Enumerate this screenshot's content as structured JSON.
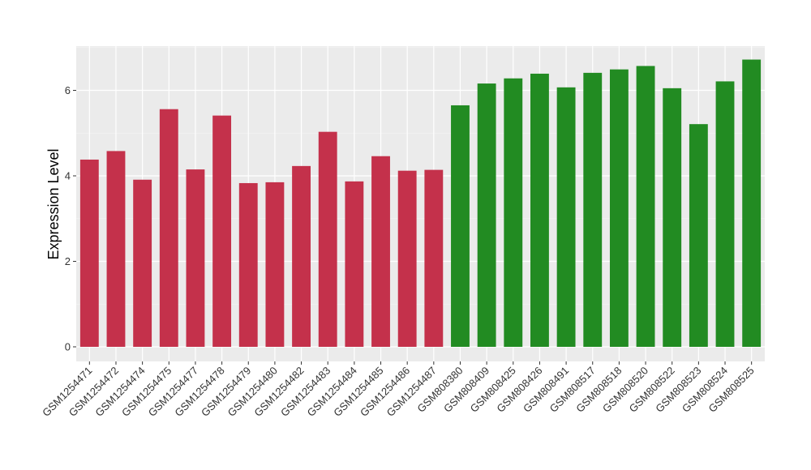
{
  "chart_data": {
    "type": "bar",
    "ylabel": "Expression Level",
    "xlabel": "",
    "ylim": [
      0,
      7.1
    ],
    "yticks": [
      0,
      2,
      4,
      6
    ],
    "grid": true,
    "background": "#ebebeb",
    "group_colors": {
      "group1": "#c4314b",
      "group2": "#228b22"
    },
    "categories": [
      "GSM1254471",
      "GSM1254472",
      "GSM1254474",
      "GSM1254475",
      "GSM1254477",
      "GSM1254478",
      "GSM1254479",
      "GSM1254480",
      "GSM1254482",
      "GSM1254483",
      "GSM1254484",
      "GSM1254485",
      "GSM1254486",
      "GSM1254487",
      "GSM808380",
      "GSM808409",
      "GSM808425",
      "GSM808426",
      "GSM808491",
      "GSM808517",
      "GSM808518",
      "GSM808520",
      "GSM808522",
      "GSM808523",
      "GSM808524",
      "GSM808525"
    ],
    "values": [
      4.38,
      4.58,
      3.91,
      5.56,
      4.15,
      5.41,
      3.83,
      3.85,
      4.23,
      5.03,
      3.87,
      4.46,
      4.12,
      4.14,
      5.65,
      6.16,
      6.28,
      6.39,
      6.07,
      6.41,
      6.49,
      6.57,
      6.05,
      5.21,
      6.21,
      6.72
    ],
    "groups": [
      "group1",
      "group1",
      "group1",
      "group1",
      "group1",
      "group1",
      "group1",
      "group1",
      "group1",
      "group1",
      "group1",
      "group1",
      "group1",
      "group1",
      "group2",
      "group2",
      "group2",
      "group2",
      "group2",
      "group2",
      "group2",
      "group2",
      "group2",
      "group2",
      "group2",
      "group2"
    ]
  }
}
